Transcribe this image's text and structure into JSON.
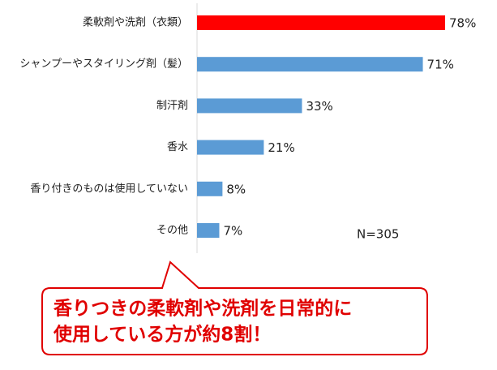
{
  "chart_data": {
    "type": "bar",
    "orientation": "horizontal",
    "categories": [
      "柔軟剤や洗剤（衣類）",
      "シャンプーやスタイリング剤（髪）",
      "制汗剤",
      "香水",
      "香り付きのものは使用していない",
      "その他"
    ],
    "values": [
      78,
      71,
      33,
      21,
      8,
      7
    ],
    "value_labels": [
      "78%",
      "71%",
      "33%",
      "21%",
      "8%",
      "7%"
    ],
    "colors": [
      "#ff0000",
      "#5b9bd5",
      "#5b9bd5",
      "#5b9bd5",
      "#5b9bd5",
      "#5b9bd5"
    ],
    "annotation": "N=305",
    "callout": [
      "香りつきの柔軟剤や洗剤を日常的に",
      "使用している方が約8割！"
    ]
  }
}
